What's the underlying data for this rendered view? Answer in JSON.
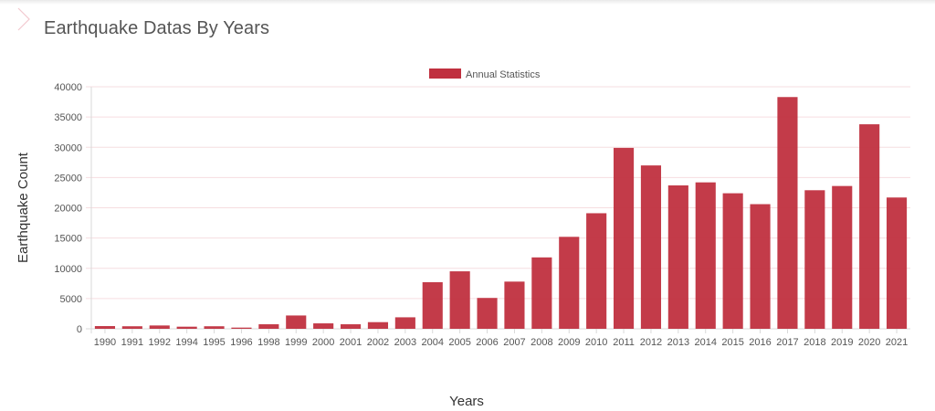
{
  "page": {
    "title": "Earthquake Datas By Years"
  },
  "icons": {
    "collapse": "chevron-right-icon"
  },
  "colors": {
    "bar": "#c0303f",
    "grid": "#f6dde0",
    "text": "#555555"
  },
  "chart_data": {
    "type": "bar",
    "title": "",
    "xlabel": "Years",
    "ylabel": "Earthquake Count",
    "ylim": [
      0,
      40000
    ],
    "yticks": [
      0,
      5000,
      10000,
      15000,
      20000,
      25000,
      30000,
      35000,
      40000
    ],
    "grid": true,
    "legend": {
      "position": "top",
      "entries": [
        "Annual Statistics"
      ]
    },
    "categories": [
      "1990",
      "1991",
      "1992",
      "1994",
      "1995",
      "1996",
      "1998",
      "1999",
      "2000",
      "2001",
      "2002",
      "2003",
      "2004",
      "2005",
      "2006",
      "2007",
      "2008",
      "2009",
      "2010",
      "2011",
      "2012",
      "2013",
      "2014",
      "2015",
      "2016",
      "2017",
      "2018",
      "2019",
      "2020",
      "2021"
    ],
    "series": [
      {
        "name": "Annual Statistics",
        "values": [
          450,
          420,
          550,
          350,
          420,
          200,
          750,
          2200,
          900,
          750,
          1100,
          1900,
          7700,
          9500,
          5100,
          7800,
          11800,
          15200,
          19100,
          29900,
          27000,
          23700,
          24200,
          22400,
          20600,
          38300,
          22900,
          23600,
          33800,
          21700
        ]
      }
    ]
  }
}
